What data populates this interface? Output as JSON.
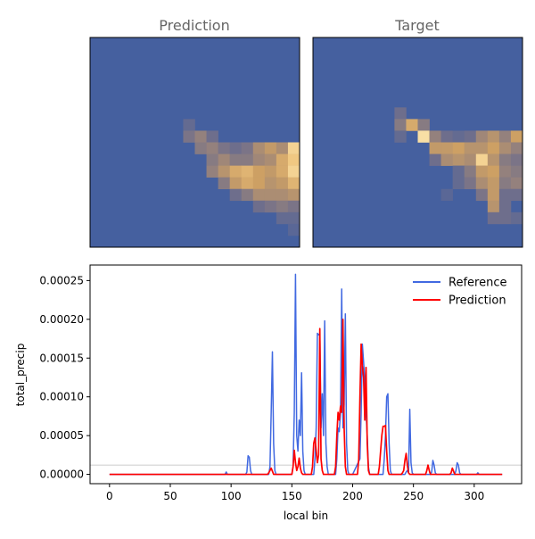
{
  "panels": {
    "left_title": "Prediction",
    "right_title": "Target"
  },
  "colors": {
    "background_field": "#45609F",
    "reference_line": "#4169E1",
    "prediction_line": "#FF0000",
    "hline": "#BBBBBB",
    "title_text": "#666666"
  },
  "chart_data": [
    {
      "type": "heatmap",
      "title": "Prediction",
      "grid_size": [
        18,
        18
      ],
      "colormap": "dark-blue to tan to cream",
      "nonzero_cells": [
        {
          "row": 7,
          "col": 8,
          "value": 0.15
        },
        {
          "row": 8,
          "col": 8,
          "value": 0.25
        },
        {
          "row": 8,
          "col": 9,
          "value": 0.35
        },
        {
          "row": 8,
          "col": 10,
          "value": 0.2
        },
        {
          "row": 9,
          "col": 9,
          "value": 0.3
        },
        {
          "row": 9,
          "col": 10,
          "value": 0.35
        },
        {
          "row": 9,
          "col": 11,
          "value": 0.25
        },
        {
          "row": 9,
          "col": 12,
          "value": 0.2
        },
        {
          "row": 9,
          "col": 13,
          "value": 0.25
        },
        {
          "row": 9,
          "col": 14,
          "value": 0.45
        },
        {
          "row": 9,
          "col": 15,
          "value": 0.55
        },
        {
          "row": 9,
          "col": 16,
          "value": 0.45
        },
        {
          "row": 9,
          "col": 17,
          "value": 0.85
        },
        {
          "row": 10,
          "col": 10,
          "value": 0.3
        },
        {
          "row": 10,
          "col": 11,
          "value": 0.4
        },
        {
          "row": 10,
          "col": 12,
          "value": 0.3
        },
        {
          "row": 10,
          "col": 13,
          "value": 0.3
        },
        {
          "row": 10,
          "col": 14,
          "value": 0.4
        },
        {
          "row": 10,
          "col": 15,
          "value": 0.45
        },
        {
          "row": 10,
          "col": 16,
          "value": 0.65
        },
        {
          "row": 10,
          "col": 17,
          "value": 0.8
        },
        {
          "row": 11,
          "col": 10,
          "value": 0.35
        },
        {
          "row": 11,
          "col": 11,
          "value": 0.5
        },
        {
          "row": 11,
          "col": 12,
          "value": 0.65
        },
        {
          "row": 11,
          "col": 13,
          "value": 0.7
        },
        {
          "row": 11,
          "col": 14,
          "value": 0.6
        },
        {
          "row": 11,
          "col": 15,
          "value": 0.55
        },
        {
          "row": 11,
          "col": 16,
          "value": 0.65
        },
        {
          "row": 11,
          "col": 17,
          "value": 0.85
        },
        {
          "row": 12,
          "col": 11,
          "value": 0.3
        },
        {
          "row": 12,
          "col": 12,
          "value": 0.55
        },
        {
          "row": 12,
          "col": 13,
          "value": 0.65
        },
        {
          "row": 12,
          "col": 14,
          "value": 0.6
        },
        {
          "row": 12,
          "col": 15,
          "value": 0.5
        },
        {
          "row": 12,
          "col": 16,
          "value": 0.55
        },
        {
          "row": 12,
          "col": 17,
          "value": 0.7
        },
        {
          "row": 13,
          "col": 12,
          "value": 0.2
        },
        {
          "row": 13,
          "col": 13,
          "value": 0.3
        },
        {
          "row": 13,
          "col": 14,
          "value": 0.45
        },
        {
          "row": 13,
          "col": 15,
          "value": 0.45
        },
        {
          "row": 13,
          "col": 16,
          "value": 0.45
        },
        {
          "row": 13,
          "col": 17,
          "value": 0.5
        },
        {
          "row": 14,
          "col": 14,
          "value": 0.2
        },
        {
          "row": 14,
          "col": 15,
          "value": 0.25
        },
        {
          "row": 14,
          "col": 16,
          "value": 0.3
        },
        {
          "row": 14,
          "col": 17,
          "value": 0.25
        },
        {
          "row": 15,
          "col": 16,
          "value": 0.15
        },
        {
          "row": 15,
          "col": 17,
          "value": 0.15
        },
        {
          "row": 16,
          "col": 17,
          "value": 0.1
        }
      ]
    },
    {
      "type": "heatmap",
      "title": "Target",
      "grid_size": [
        18,
        18
      ],
      "colormap": "dark-blue to tan to cream",
      "nonzero_cells": [
        {
          "row": 6,
          "col": 7,
          "value": 0.2
        },
        {
          "row": 7,
          "col": 7,
          "value": 0.3
        },
        {
          "row": 7,
          "col": 8,
          "value": 0.65
        },
        {
          "row": 7,
          "col": 9,
          "value": 0.3
        },
        {
          "row": 8,
          "col": 7,
          "value": 0.15
        },
        {
          "row": 8,
          "col": 9,
          "value": 0.9
        },
        {
          "row": 8,
          "col": 10,
          "value": 0.35
        },
        {
          "row": 8,
          "col": 11,
          "value": 0.2
        },
        {
          "row": 8,
          "col": 12,
          "value": 0.15
        },
        {
          "row": 8,
          "col": 13,
          "value": 0.2
        },
        {
          "row": 8,
          "col": 14,
          "value": 0.4
        },
        {
          "row": 8,
          "col": 15,
          "value": 0.5
        },
        {
          "row": 8,
          "col": 16,
          "value": 0.35
        },
        {
          "row": 8,
          "col": 17,
          "value": 0.6
        },
        {
          "row": 9,
          "col": 10,
          "value": 0.55
        },
        {
          "row": 9,
          "col": 11,
          "value": 0.55
        },
        {
          "row": 9,
          "col": 12,
          "value": 0.6
        },
        {
          "row": 9,
          "col": 13,
          "value": 0.5
        },
        {
          "row": 9,
          "col": 14,
          "value": 0.5
        },
        {
          "row": 9,
          "col": 15,
          "value": 0.6
        },
        {
          "row": 9,
          "col": 16,
          "value": 0.45
        },
        {
          "row": 9,
          "col": 17,
          "value": 0.35
        },
        {
          "row": 10,
          "col": 10,
          "value": 0.2
        },
        {
          "row": 10,
          "col": 11,
          "value": 0.45
        },
        {
          "row": 10,
          "col": 12,
          "value": 0.5
        },
        {
          "row": 10,
          "col": 13,
          "value": 0.45
        },
        {
          "row": 10,
          "col": 14,
          "value": 0.85
        },
        {
          "row": 10,
          "col": 15,
          "value": 0.5
        },
        {
          "row": 10,
          "col": 16,
          "value": 0.3
        },
        {
          "row": 10,
          "col": 17,
          "value": 0.25
        },
        {
          "row": 11,
          "col": 12,
          "value": 0.15
        },
        {
          "row": 11,
          "col": 13,
          "value": 0.3
        },
        {
          "row": 11,
          "col": 14,
          "value": 0.55
        },
        {
          "row": 11,
          "col": 15,
          "value": 0.6
        },
        {
          "row": 11,
          "col": 16,
          "value": 0.35
        },
        {
          "row": 11,
          "col": 17,
          "value": 0.3
        },
        {
          "row": 12,
          "col": 12,
          "value": 0.15
        },
        {
          "row": 12,
          "col": 13,
          "value": 0.25
        },
        {
          "row": 12,
          "col": 14,
          "value": 0.45
        },
        {
          "row": 12,
          "col": 15,
          "value": 0.55
        },
        {
          "row": 12,
          "col": 16,
          "value": 0.3
        },
        {
          "row": 12,
          "col": 17,
          "value": 0.35
        },
        {
          "row": 13,
          "col": 11,
          "value": 0.1
        },
        {
          "row": 13,
          "col": 14,
          "value": 0.25
        },
        {
          "row": 13,
          "col": 15,
          "value": 0.55
        },
        {
          "row": 13,
          "col": 16,
          "value": 0.2
        },
        {
          "row": 13,
          "col": 17,
          "value": 0.2
        },
        {
          "row": 14,
          "col": 15,
          "value": 0.5
        },
        {
          "row": 14,
          "col": 16,
          "value": 0.2
        },
        {
          "row": 15,
          "col": 15,
          "value": 0.2
        },
        {
          "row": 15,
          "col": 16,
          "value": 0.2
        },
        {
          "row": 15,
          "col": 17,
          "value": 0.15
        }
      ]
    },
    {
      "type": "line",
      "xlabel": "local bin",
      "ylabel": "total_precip",
      "xlim": [
        -16,
        339
      ],
      "ylim": [
        -1.2e-05,
        0.00027
      ],
      "xticks": [
        0,
        50,
        100,
        150,
        200,
        250,
        300
      ],
      "xtick_labels": [
        "0",
        "50",
        "100",
        "150",
        "200",
        "250",
        "300"
      ],
      "yticks": [
        0,
        5e-05,
        0.0001,
        0.00015,
        0.0002,
        0.00025
      ],
      "ytick_labels": [
        "0.00000",
        "0.00005",
        "0.00010",
        "0.00015",
        "0.00020",
        "0.00025"
      ],
      "hline_y": 1.2e-05,
      "legend_position": "top-right",
      "grid": false,
      "series": [
        {
          "name": "Reference",
          "color": "#4169E1",
          "x": [
            0,
            95,
            96,
            97,
            112,
            113,
            114,
            115,
            116,
            117,
            118,
            131,
            132,
            133,
            134,
            135,
            136,
            137,
            150,
            151,
            152,
            153,
            154,
            155,
            156,
            157,
            158,
            159,
            160,
            161,
            162,
            163,
            168,
            169,
            170,
            171,
            172,
            173,
            174,
            175,
            176,
            177,
            178,
            179,
            180,
            181,
            186,
            187,
            188,
            189,
            190,
            191,
            192,
            193,
            194,
            195,
            196,
            197,
            198,
            199,
            200,
            206,
            207,
            208,
            209,
            210,
            211,
            212,
            213,
            214,
            215,
            216,
            217,
            225,
            226,
            227,
            228,
            229,
            230,
            231,
            232,
            233,
            243,
            244,
            245,
            246,
            247,
            248,
            249,
            250,
            251,
            264,
            265,
            266,
            267,
            268,
            269,
            283,
            284,
            285,
            286,
            287,
            288,
            289,
            302,
            303,
            304,
            305,
            323
          ],
          "y": [
            0,
            0,
            3e-06,
            0,
            0,
            3e-06,
            2.4e-05,
            2.2e-05,
            5e-06,
            0,
            0,
            0,
            1e-05,
            8e-05,
            0.000158,
            4e-05,
            5e-06,
            0,
            0,
            1e-05,
            8e-05,
            0.000258,
            5e-05,
            3e-05,
            7e-05,
            5e-05,
            0.000131,
            3e-05,
            5e-06,
            0,
            0,
            0,
            0,
            2e-05,
            6e-05,
            0.000182,
            0.00018,
            0.000181,
            6e-05,
            0.000104,
            5e-05,
            0.000198,
            4e-05,
            1e-05,
            0,
            0,
            0,
            2e-05,
            6e-05,
            5.5e-05,
            8e-05,
            0.000239,
            6e-05,
            9e-05,
            0.000207,
            4e-05,
            5e-06,
            0,
            0,
            0,
            0,
            2e-05,
            8e-05,
            0.000168,
            0.000145,
            0.00012,
            8e-05,
            5e-05,
            1e-05,
            0,
            0,
            0,
            0,
            0,
            2e-05,
            5e-05,
            0.0001,
            0.000104,
            4e-05,
            5e-06,
            0,
            0,
            0,
            3e-06,
            5e-06,
            2e-06,
            8.4e-05,
            1.5e-05,
            2e-06,
            0,
            0,
            0,
            3e-06,
            1.8e-05,
            1.2e-05,
            2e-06,
            0,
            0,
            0,
            5e-06,
            1.5e-05,
            1.2e-05,
            2e-06,
            0,
            0,
            2e-06,
            0,
            0,
            0
          ]
        },
        {
          "name": "Prediction",
          "color": "#FF0000",
          "x": [
            0,
            130,
            131,
            132,
            133,
            134,
            135,
            150,
            151,
            152,
            153,
            154,
            155,
            156,
            157,
            158,
            159,
            160,
            166,
            167,
            168,
            169,
            170,
            171,
            172,
            173,
            174,
            175,
            176,
            177,
            178,
            179,
            185,
            186,
            187,
            188,
            189,
            190,
            191,
            192,
            193,
            194,
            195,
            196,
            197,
            198,
            204,
            205,
            206,
            207,
            208,
            209,
            210,
            211,
            212,
            213,
            214,
            215,
            221,
            222,
            223,
            224,
            225,
            226,
            227,
            228,
            229,
            230,
            240,
            241,
            242,
            243,
            244,
            245,
            246,
            247,
            260,
            261,
            262,
            263,
            264,
            280,
            281,
            282,
            283,
            284,
            285,
            323
          ],
          "y": [
            0,
            0,
            2e-06,
            5e-06,
            8e-06,
            4e-06,
            0,
            0,
            1e-05,
            3.1e-05,
            1.5e-05,
            5e-06,
            1e-05,
            2.1e-05,
            8e-06,
            2e-06,
            0,
            0,
            0,
            1e-05,
            4e-05,
            4.7e-05,
            3e-05,
            1.5e-05,
            2.5e-05,
            0.000188,
            2e-05,
            5e-06,
            0,
            0,
            0,
            0,
            0,
            1e-05,
            5e-05,
            8e-05,
            7e-05,
            8.8e-05,
            8e-05,
            0.0002,
            6e-05,
            1e-05,
            0,
            0,
            0,
            0,
            0,
            2e-05,
            0.0001,
            0.000168,
            0.00014,
            0.000125,
            7e-05,
            0.000138,
            4e-05,
            5e-06,
            0,
            0,
            0,
            1e-05,
            3e-05,
            5e-05,
            6.2e-05,
            6.2e-05,
            6.3e-05,
            3e-05,
            5e-06,
            0,
            0,
            2e-06,
            5e-06,
            1.8e-05,
            2.7e-05,
            1.2e-05,
            2e-06,
            0,
            0,
            5e-06,
            1.2e-05,
            5e-06,
            0,
            0,
            2e-06,
            8e-06,
            4e-06,
            0,
            0,
            0
          ]
        }
      ]
    }
  ]
}
